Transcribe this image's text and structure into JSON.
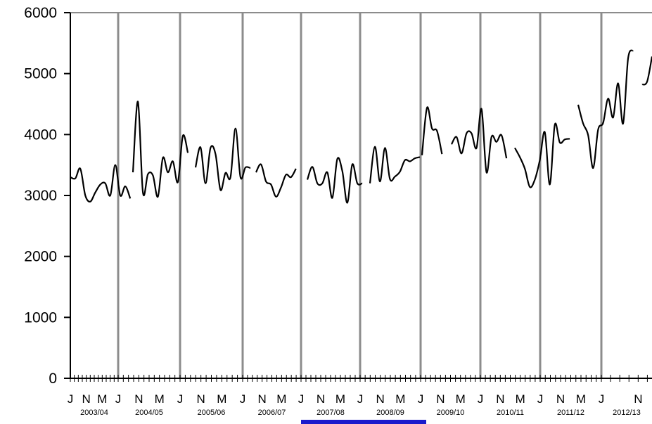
{
  "chart_data": {
    "type": "line",
    "title": "",
    "xlabel": "",
    "ylabel": "",
    "ylim": [
      0,
      6000
    ],
    "yticks": [
      0,
      1000,
      2000,
      3000,
      4000,
      5000,
      6000
    ],
    "month_tick_letters": [
      "J",
      "N",
      "M"
    ],
    "year_labels": [
      "2003/04",
      "2004/05",
      "2005/06",
      "2006/07",
      "2007/08",
      "2008/09",
      "2009/10",
      "2010/11",
      "2011/12",
      "2012/13"
    ],
    "grid": "vertical lines at year boundaries",
    "legend": "none",
    "line_color": "#000000",
    "divider_color": "#8c8c8c",
    "highlight_color": "#1a1acc",
    "highlight_years": [
      "2007/08",
      "2008/09"
    ],
    "series": [
      {
        "values": [
          [
            3300,
            3280,
            3440,
            3000,
            2900,
            3050,
            3180,
            3200,
            3000,
            3500,
            3000,
            3150,
            2950
          ],
          [
            3380,
            4540,
            3050,
            3350,
            3330,
            2980,
            3620,
            3380,
            3560,
            3220,
            3980,
            3700
          ],
          [
            3460,
            3790,
            3200,
            3780,
            3680,
            3090,
            3370,
            3300,
            4100,
            3300,
            3460,
            3450
          ],
          [
            3380,
            3510,
            3230,
            3180,
            2980,
            3130,
            3340,
            3300,
            3440
          ],
          [
            3260,
            3470,
            3200,
            3200,
            3380,
            2960,
            3600,
            3400,
            2880,
            3510,
            3200,
            3200
          ],
          [
            3200,
            3800,
            3230,
            3780,
            3270,
            3310,
            3390,
            3580,
            3560,
            3610,
            3630
          ],
          [
            3660,
            4440,
            4100,
            4060,
            3680
          ],
          [
            3840,
            3960,
            3690,
            4020,
            4020,
            3780,
            4420,
            3380,
            3960,
            3880,
            3990,
            3610
          ],
          [
            3780,
            3630,
            3440,
            3140,
            3260,
            3580,
            4040,
            3180,
            4160,
            3870,
            3920,
            3930
          ],
          [
            4490,
            4180,
            3990,
            3450,
            4080,
            4190,
            4590,
            4280,
            4840,
            4180,
            5250,
            5380
          ],
          [
            4820,
            4870,
            5280
          ]
        ]
      }
    ]
  }
}
